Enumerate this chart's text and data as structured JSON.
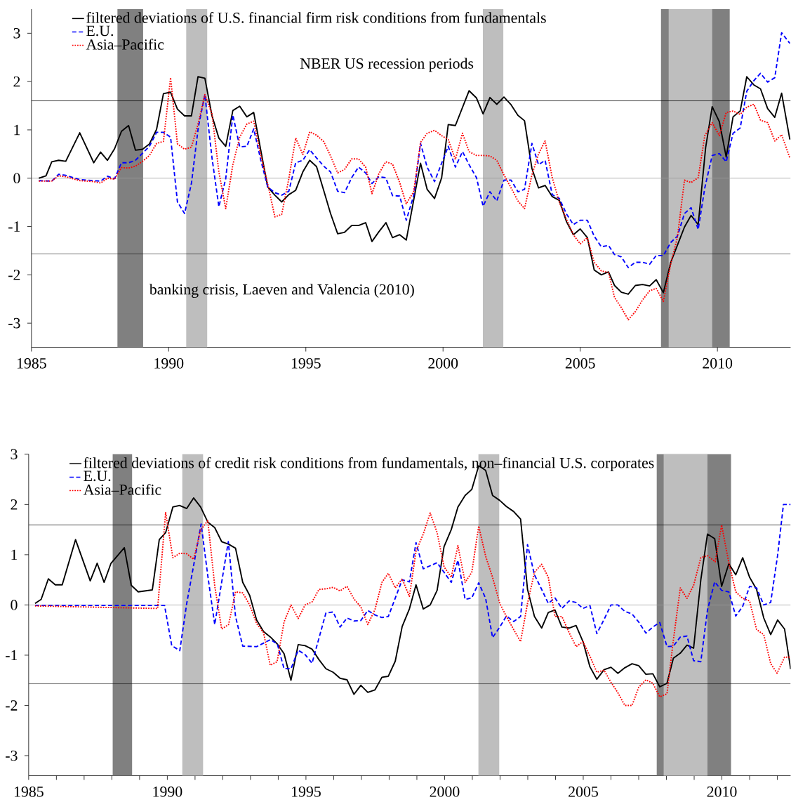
{
  "chart_data": [
    {
      "type": "line",
      "xlim": [
        1985,
        2012.67
      ],
      "ylim": [
        -3.5,
        3.5
      ],
      "xticks": [
        1985,
        1990,
        1995,
        2000,
        2005,
        2010
      ],
      "yticks": [
        -3,
        -2,
        -1,
        0,
        1,
        2,
        3
      ],
      "grid": false,
      "legend": "top left",
      "marker": "none",
      "annotations": [
        "NBER US recession periods",
        "banking crisis, Laeven and Valencia (2010)"
      ],
      "ref_lines": [
        {
          "axis": "y",
          "value": 1.6,
          "color": "#000000"
        },
        {
          "axis": "y",
          "value": 0,
          "color": "#9a9a9a"
        },
        {
          "axis": "y",
          "value": -1.57,
          "color": "#000000"
        }
      ],
      "bands": [
        {
          "axis": "x",
          "from": 1988.13,
          "to": 1989.07,
          "color": "#808080"
        },
        {
          "axis": "x",
          "from": 2007.94,
          "to": 2010.45,
          "color": "#808080"
        },
        {
          "axis": "x",
          "from": 1990.64,
          "to": 1991.41,
          "color": "#bebebe"
        },
        {
          "axis": "x",
          "from": 2001.45,
          "to": 2002.2,
          "color": "#bebebe"
        },
        {
          "axis": "x",
          "from": 2008.22,
          "to": 2009.81,
          "color": "#bebebe"
        }
      ],
      "series": [
        {
          "name": "filtered deviations of U.S. financial firm risk conditions from fundamentals",
          "color": "#000000",
          "line_style": "solid",
          "x": [
            1985.27,
            1985.53,
            1985.74,
            1985.99,
            1986.25,
            1986.76,
            1987.27,
            1987.52,
            1987.77,
            1988.03,
            1988.28,
            1988.54,
            1988.79,
            1989.05,
            1989.3,
            1989.56,
            1989.81,
            1990.07,
            1990.32,
            1990.58,
            1990.83,
            1991.07,
            1991.32,
            1991.58,
            1991.83,
            1992.08,
            1992.34,
            1992.59,
            1992.85,
            1993.1,
            1993.36,
            1993.61,
            1993.87,
            1994.12,
            1994.38,
            1994.63,
            1994.89,
            1995.14,
            1995.39,
            1995.65,
            1995.9,
            1996.16,
            1996.41,
            1996.67,
            1996.92,
            1997.18,
            1997.41,
            1997.66,
            1997.92,
            1998.16,
            1998.42,
            1998.66,
            1999.18,
            1999.42,
            1999.69,
            1999.95,
            2000.19,
            2000.45,
            2000.95,
            2001.22,
            2001.46,
            2001.71,
            2001.96,
            2002.22,
            2002.48,
            2002.73,
            2002.97,
            2003.24,
            2003.48,
            2003.72,
            2003.98,
            2004.24,
            2004.5,
            2004.75,
            2005.0,
            2005.26,
            2005.51,
            2005.77,
            2006.03,
            2006.25,
            2006.5,
            2006.75,
            2007.01,
            2007.27,
            2007.53,
            2007.77,
            2008.03,
            2008.3,
            2008.56,
            2008.8,
            2009.04,
            2009.3,
            2009.57,
            2009.81,
            2010.07,
            2010.32,
            2010.57,
            2010.83,
            2011.07,
            2011.33,
            2011.57,
            2011.83,
            2012.09,
            2012.34,
            2012.64
          ],
          "values": [
            0.0,
            0.05,
            0.34,
            0.37,
            0.35,
            0.94,
            0.32,
            0.54,
            0.37,
            0.61,
            0.97,
            1.09,
            0.58,
            0.6,
            0.71,
            1.01,
            1.75,
            1.78,
            1.43,
            1.29,
            1.29,
            2.1,
            2.07,
            1.29,
            0.83,
            0.66,
            1.4,
            1.49,
            1.27,
            1.36,
            0.57,
            -0.18,
            -0.35,
            -0.49,
            -0.34,
            -0.25,
            0.13,
            0.37,
            0.24,
            -0.25,
            -0.73,
            -1.15,
            -1.12,
            -0.98,
            -0.98,
            -0.92,
            -1.31,
            -1.11,
            -0.92,
            -1.23,
            -1.17,
            -1.28,
            0.31,
            -0.23,
            -0.42,
            0.01,
            1.11,
            1.09,
            1.81,
            1.66,
            1.33,
            1.67,
            1.53,
            1.68,
            1.52,
            1.3,
            1.19,
            0.2,
            -0.2,
            -0.15,
            -0.38,
            -0.46,
            -0.9,
            -1.17,
            -1.05,
            -1.23,
            -1.9,
            -2.0,
            -1.94,
            -2.22,
            -2.36,
            -2.4,
            -2.22,
            -2.2,
            -2.23,
            -2.1,
            -2.37,
            -1.74,
            -1.36,
            -1.01,
            -0.77,
            -0.96,
            0.63,
            1.48,
            1.17,
            0.44,
            1.27,
            1.39,
            2.1,
            1.93,
            1.85,
            1.44,
            1.26,
            1.76,
            0.8
          ]
        },
        {
          "name": "E.U.",
          "color": "#0000ff",
          "line_style": "dashed",
          "x": [
            1985.27,
            1985.74,
            1985.99,
            1986.25,
            1986.76,
            1987.27,
            1987.52,
            1987.77,
            1988.03,
            1988.28,
            1988.54,
            1988.79,
            1989.3,
            1989.56,
            1989.81,
            1990.07,
            1990.32,
            1990.58,
            1990.83,
            1991.08,
            1991.32,
            1991.58,
            1991.83,
            1992.08,
            1992.34,
            1992.59,
            1992.85,
            1993.1,
            1993.36,
            1993.61,
            1993.87,
            1994.12,
            1994.38,
            1994.63,
            1994.89,
            1995.14,
            1995.39,
            1995.65,
            1995.9,
            1996.16,
            1996.41,
            1996.67,
            1996.92,
            1997.18,
            1997.41,
            1997.66,
            1997.91,
            1998.16,
            1998.42,
            1998.66,
            1998.93,
            1999.18,
            1999.42,
            1999.69,
            1999.95,
            2000.19,
            2000.45,
            2000.71,
            2000.95,
            2001.22,
            2001.46,
            2001.71,
            2001.96,
            2002.22,
            2002.48,
            2002.73,
            2002.97,
            2003.24,
            2003.48,
            2003.72,
            2003.98,
            2004.24,
            2004.5,
            2004.75,
            2005.0,
            2005.26,
            2005.51,
            2005.77,
            2006.03,
            2006.25,
            2006.5,
            2006.75,
            2007.01,
            2007.27,
            2007.53,
            2007.77,
            2008.03,
            2008.3,
            2008.54,
            2008.8,
            2009.04,
            2009.3,
            2009.54,
            2009.81,
            2010.07,
            2010.32,
            2010.57,
            2010.83,
            2011.07,
            2011.33,
            2011.57,
            2011.83,
            2012.09,
            2012.34,
            2012.64
          ],
          "values": [
            -0.05,
            -0.06,
            0.08,
            0.06,
            -0.03,
            -0.05,
            -0.06,
            0.04,
            -0.01,
            0.32,
            0.32,
            0.37,
            0.66,
            0.95,
            0.95,
            0.85,
            -0.49,
            -0.73,
            -0.11,
            1.05,
            1.73,
            0.42,
            -0.59,
            -0.01,
            1.31,
            0.65,
            0.66,
            1.02,
            0.37,
            -0.18,
            -0.3,
            -0.35,
            -0.27,
            0.32,
            0.37,
            0.59,
            0.42,
            0.25,
            0.13,
            -0.27,
            -0.3,
            0.01,
            0.23,
            0.11,
            -0.11,
            0.03,
            0.01,
            -0.36,
            -0.37,
            -0.87,
            -0.36,
            0.72,
            0.23,
            -0.07,
            0.31,
            0.66,
            0.23,
            0.55,
            0.28,
            0.01,
            -0.58,
            -0.28,
            -0.47,
            -0.04,
            -0.04,
            -0.28,
            -0.23,
            0.72,
            0.28,
            0.37,
            -0.34,
            -0.42,
            -0.74,
            -0.96,
            -0.87,
            -0.87,
            -1.2,
            -1.42,
            -1.39,
            -1.58,
            -1.63,
            -1.85,
            -1.74,
            -1.74,
            -1.78,
            -1.6,
            -1.6,
            -1.33,
            -1.2,
            -0.73,
            -0.61,
            -1.06,
            -0.2,
            0.47,
            0.51,
            0.34,
            0.93,
            1.04,
            1.8,
            2.02,
            2.17,
            1.99,
            2.08,
            3.01,
            2.79
          ]
        },
        {
          "name": "Asia–Pacific",
          "color": "#ff0000",
          "line_style": "dotted",
          "x": [
            1985.27,
            1985.74,
            1985.99,
            1986.25,
            1986.76,
            1987.27,
            1987.52,
            1987.77,
            1988.03,
            1988.28,
            1988.54,
            1988.79,
            1989.05,
            1989.3,
            1989.56,
            1989.81,
            1990.07,
            1990.32,
            1990.58,
            1990.83,
            1991.08,
            1991.32,
            1991.58,
            1991.83,
            1992.08,
            1992.34,
            1992.59,
            1992.85,
            1993.1,
            1993.36,
            1993.61,
            1993.87,
            1994.12,
            1994.38,
            1994.63,
            1994.89,
            1995.14,
            1995.39,
            1995.65,
            1995.9,
            1996.16,
            1996.41,
            1996.67,
            1996.92,
            1997.18,
            1997.41,
            1997.66,
            1997.91,
            1998.16,
            1998.42,
            1998.66,
            1998.93,
            1999.18,
            1999.42,
            1999.69,
            1999.95,
            2000.19,
            2000.45,
            2000.71,
            2000.95,
            2001.22,
            2001.46,
            2001.71,
            2001.96,
            2002.22,
            2002.48,
            2002.73,
            2002.97,
            2003.24,
            2003.48,
            2003.72,
            2003.98,
            2004.24,
            2004.5,
            2004.75,
            2005.0,
            2005.26,
            2005.51,
            2005.77,
            2006.03,
            2006.25,
            2006.5,
            2006.75,
            2007.01,
            2007.27,
            2007.53,
            2007.77,
            2008.03,
            2008.3,
            2008.54,
            2008.8,
            2009.04,
            2009.3,
            2009.54,
            2009.81,
            2010.07,
            2010.32,
            2010.57,
            2010.83,
            2011.07,
            2011.33,
            2011.57,
            2011.83,
            2012.09,
            2012.34,
            2012.64
          ],
          "values": [
            -0.06,
            -0.06,
            0.05,
            0.03,
            -0.05,
            -0.07,
            -0.1,
            0.0,
            -0.02,
            0.22,
            0.21,
            0.25,
            0.35,
            0.47,
            0.72,
            0.76,
            2.08,
            0.71,
            0.6,
            0.64,
            1.14,
            1.73,
            1.33,
            0.13,
            -0.63,
            0.28,
            0.85,
            1.12,
            1.18,
            0.47,
            -0.11,
            -0.8,
            -0.75,
            -0.01,
            0.83,
            0.49,
            0.96,
            0.89,
            0.76,
            0.46,
            0.11,
            0.18,
            0.4,
            0.4,
            0.23,
            -0.32,
            0.09,
            0.34,
            0.29,
            -0.09,
            -0.53,
            -0.28,
            0.74,
            0.93,
            0.99,
            0.88,
            0.8,
            0.39,
            0.93,
            0.55,
            0.47,
            0.47,
            0.46,
            0.37,
            0.07,
            -0.2,
            -0.47,
            -0.63,
            0.07,
            0.5,
            0.77,
            0.01,
            -0.5,
            -0.85,
            -1.17,
            -1.36,
            -1.23,
            -1.74,
            -1.92,
            -1.95,
            -2.47,
            -2.68,
            -2.93,
            -2.76,
            -2.52,
            -2.33,
            -2.28,
            -2.55,
            -1.77,
            -1.23,
            -0.04,
            -0.09,
            0.01,
            0.88,
            1.15,
            0.88,
            1.36,
            1.39,
            1.32,
            1.47,
            1.53,
            1.2,
            1.15,
            0.77,
            0.9,
            0.42
          ]
        }
      ]
    },
    {
      "type": "line",
      "xlim": [
        1985,
        2012.48
      ],
      "ylim": [
        -3.4,
        3.0
      ],
      "xticks": [
        1985,
        {
          "value": 1986,
          "label": null
        },
        {
          "value": 1987,
          "label": null
        },
        {
          "value": 1988,
          "label": null
        },
        {
          "value": 1989,
          "label": null
        },
        1990,
        {
          "value": 1991,
          "label": null
        },
        {
          "value": 1992,
          "label": null
        },
        {
          "value": 1993,
          "label": null
        },
        {
          "value": 1994,
          "label": null
        },
        1995,
        {
          "value": 1996,
          "label": null
        },
        {
          "value": 1997,
          "label": null
        },
        {
          "value": 1998,
          "label": null
        },
        {
          "value": 1999,
          "label": null
        },
        2000,
        {
          "value": 2001,
          "label": null
        },
        {
          "value": 2002,
          "label": null
        },
        {
          "value": 2003,
          "label": null
        },
        {
          "value": 2004,
          "label": null
        },
        2005,
        {
          "value": 2006,
          "label": null
        },
        {
          "value": 2007,
          "label": null
        },
        {
          "value": 2008,
          "label": null
        },
        {
          "value": 2009,
          "label": null
        },
        2010,
        {
          "value": 2011,
          "label": null
        },
        {
          "value": 2012,
          "label": null
        }
      ],
      "yticks": [
        -3,
        -2,
        -1,
        0,
        1,
        2,
        3
      ],
      "grid": false,
      "legend": "top left",
      "marker": "none",
      "ref_lines": [
        {
          "axis": "y",
          "value": 1.59,
          "color": "#000000"
        },
        {
          "axis": "y",
          "value": 0,
          "color": "#9a9a9a"
        },
        {
          "axis": "y",
          "value": -1.57,
          "color": "#000000"
        }
      ],
      "bands": [
        {
          "axis": "x",
          "from": 1988.03,
          "to": 1988.73,
          "color": "#808080"
        },
        {
          "axis": "x",
          "from": 2007.65,
          "to": 2010.33,
          "color": "#808080"
        },
        {
          "axis": "x",
          "from": 1990.54,
          "to": 1991.29,
          "color": "#bebebe"
        },
        {
          "axis": "x",
          "from": 2001.22,
          "to": 2001.97,
          "color": "#bebebe"
        },
        {
          "axis": "x",
          "from": 2007.9,
          "to": 2009.48,
          "color": "#bebebe"
        }
      ],
      "series": [
        {
          "name": "filtered deviations of credit risk conditions from fundamentals, non–financial U.S. corporates",
          "color": "#000000",
          "line_style": "solid",
          "x": [
            1985.23,
            1985.45,
            1985.71,
            1985.96,
            1986.21,
            1986.69,
            1987.22,
            1987.47,
            1987.72,
            1987.97,
            1988.45,
            1988.7,
            1988.95,
            1989.46,
            1989.71,
            1989.94,
            1990.2,
            1990.45,
            1990.7,
            1990.95,
            1991.2,
            1991.46,
            1991.71,
            1991.96,
            1992.21,
            1992.46,
            1992.72,
            1992.97,
            1993.22,
            1993.47,
            1993.72,
            1993.97,
            1994.21,
            1994.46,
            1994.72,
            1994.97,
            1995.22,
            1995.47,
            1995.72,
            1995.98,
            1996.23,
            1996.48,
            1996.73,
            1996.98,
            1997.23,
            1997.49,
            1997.74,
            1997.97,
            1998.22,
            1998.47,
            1998.73,
            1998.97,
            1999.23,
            1999.48,
            1999.73,
            1999.98,
            2000.24,
            2000.48,
            2000.74,
            2000.98,
            2001.23,
            2001.48,
            2001.73,
            2001.99,
            2002.23,
            2002.49,
            2002.74,
            2002.99,
            2003.24,
            2003.5,
            2003.74,
            2003.98,
            2004.23,
            2004.49,
            2004.74,
            2004.99,
            2005.24,
            2005.49,
            2005.75,
            2006.0,
            2006.25,
            2006.5,
            2006.76,
            2007.0,
            2007.26,
            2007.51,
            2007.76,
            2008.02,
            2008.25,
            2008.5,
            2008.74,
            2008.98,
            2009.24,
            2009.48,
            2009.74,
            2009.99,
            2010.25,
            2010.5,
            2010.75,
            2011.0,
            2011.25,
            2011.51,
            2011.76,
            2012.01,
            2012.26,
            2012.48
          ],
          "values": [
            0.03,
            0.11,
            0.52,
            0.4,
            0.4,
            1.3,
            0.48,
            0.83,
            0.45,
            0.83,
            1.14,
            0.39,
            0.26,
            0.3,
            1.3,
            1.44,
            1.95,
            1.98,
            1.92,
            2.13,
            1.95,
            1.65,
            1.54,
            1.26,
            1.21,
            1.13,
            0.45,
            0.19,
            -0.3,
            -0.53,
            -0.64,
            -0.78,
            -0.97,
            -1.5,
            -0.79,
            -0.81,
            -0.88,
            -1.09,
            -1.27,
            -1.34,
            -1.46,
            -1.49,
            -1.78,
            -1.6,
            -1.74,
            -1.69,
            -1.44,
            -1.42,
            -1.12,
            -0.43,
            -0.08,
            0.4,
            -0.08,
            0.0,
            0.29,
            1.16,
            1.5,
            1.95,
            2.18,
            2.3,
            2.77,
            2.68,
            2.18,
            2.08,
            1.96,
            1.86,
            1.71,
            0.31,
            -0.23,
            -0.46,
            -0.15,
            -0.1,
            -0.44,
            -0.46,
            -0.41,
            -0.73,
            -1.23,
            -1.48,
            -1.29,
            -1.24,
            -1.36,
            -1.25,
            -1.17,
            -1.21,
            -1.38,
            -1.37,
            -1.63,
            -1.56,
            -1.06,
            -0.96,
            -0.8,
            -0.86,
            0.5,
            1.41,
            1.32,
            0.37,
            0.82,
            0.6,
            0.94,
            0.55,
            0.31,
            -0.26,
            -0.59,
            -0.3,
            -0.48,
            -1.28
          ]
        },
        {
          "name": "E.U.",
          "color": "#0000ff",
          "line_style": "dashed",
          "x": [
            1985.23,
            1989.9,
            1990.16,
            1990.45,
            1990.7,
            1991.22,
            1991.46,
            1991.71,
            1992.2,
            1992.46,
            1992.72,
            1993.22,
            1993.72,
            1993.97,
            1994.21,
            1994.46,
            1994.72,
            1994.97,
            1995.22,
            1995.72,
            1995.98,
            1996.23,
            1996.48,
            1996.73,
            1996.98,
            1997.23,
            1997.49,
            1997.74,
            1997.97,
            1998.47,
            1998.73,
            1998.97,
            1999.23,
            1999.73,
            1999.98,
            2000.24,
            2000.48,
            2000.74,
            2000.98,
            2001.23,
            2001.48,
            2001.73,
            2001.99,
            2002.23,
            2002.49,
            2002.74,
            2002.99,
            2003.24,
            2003.5,
            2003.74,
            2003.98,
            2004.23,
            2004.49,
            2004.74,
            2004.99,
            2005.24,
            2005.49,
            2005.75,
            2006.0,
            2006.25,
            2006.5,
            2006.76,
            2007.0,
            2007.26,
            2007.51,
            2007.76,
            2008.02,
            2008.25,
            2008.5,
            2008.74,
            2008.98,
            2009.24,
            2009.48,
            2009.74,
            2009.99,
            2010.25,
            2010.5,
            2010.75,
            2011.0,
            2011.25,
            2011.51,
            2011.76,
            2012.01,
            2012.22,
            2012.48
          ],
          "values": [
            -0.01,
            -0.01,
            -0.81,
            -0.91,
            0.03,
            1.61,
            0.58,
            -0.39,
            1.26,
            -0.23,
            -0.82,
            -0.83,
            -0.69,
            -0.78,
            -1.27,
            -1.27,
            -0.9,
            -0.99,
            -1.16,
            -0.16,
            -0.14,
            -0.44,
            -0.26,
            -0.32,
            -0.31,
            -0.11,
            -0.2,
            -0.25,
            -0.23,
            0.5,
            0.46,
            1.24,
            0.72,
            0.84,
            0.65,
            0.45,
            0.89,
            0.11,
            0.14,
            0.44,
            0.13,
            -0.65,
            -0.44,
            -0.22,
            -0.33,
            -0.23,
            1.2,
            0.6,
            0.31,
            0.03,
            0.14,
            -0.07,
            0.08,
            0.05,
            -0.07,
            -0.01,
            -0.57,
            -0.29,
            0.0,
            0.0,
            -0.13,
            -0.18,
            -0.34,
            -0.56,
            -0.44,
            -0.35,
            -0.83,
            -0.82,
            -0.64,
            -0.62,
            -1.11,
            -1.13,
            -0.1,
            0.46,
            0.29,
            0.26,
            -0.22,
            -0.03,
            0.37,
            0.34,
            0.0,
            0.05,
            0.99,
            2.0,
            2.0
          ]
        },
        {
          "name": "Asia–Pacific",
          "color": "#ff0000",
          "line_style": "dotted",
          "x": [
            1985.23,
            1989.65,
            1989.94,
            1990.2,
            1990.45,
            1990.7,
            1990.95,
            1991.2,
            1991.46,
            1991.71,
            1991.96,
            1992.21,
            1992.46,
            1992.72,
            1992.97,
            1993.22,
            1993.47,
            1993.71,
            1993.96,
            1994.21,
            1994.46,
            1994.72,
            1994.97,
            1995.22,
            1995.47,
            1995.72,
            1995.98,
            1996.23,
            1996.48,
            1996.73,
            1996.98,
            1997.23,
            1997.49,
            1997.74,
            1997.97,
            1998.22,
            1998.47,
            1998.73,
            1998.97,
            1999.23,
            1999.48,
            1999.73,
            1999.98,
            2000.24,
            2000.48,
            2000.74,
            2000.98,
            2001.23,
            2001.48,
            2001.73,
            2001.99,
            2002.23,
            2002.49,
            2002.74,
            2002.99,
            2003.24,
            2003.5,
            2003.74,
            2003.98,
            2004.23,
            2004.49,
            2004.74,
            2004.99,
            2005.24,
            2005.49,
            2005.75,
            2006.0,
            2006.25,
            2006.5,
            2006.76,
            2007.0,
            2007.26,
            2007.51,
            2007.76,
            2008.02,
            2008.25,
            2008.5,
            2008.74,
            2008.98,
            2009.24,
            2009.48,
            2009.76,
            2009.99,
            2010.25,
            2010.5,
            2010.75,
            2011.0,
            2011.25,
            2011.51,
            2011.76,
            2011.99,
            2012.26,
            2012.48
          ],
          "values": [
            -0.02,
            -0.07,
            1.84,
            0.94,
            1.03,
            1.02,
            0.91,
            1.49,
            1.68,
            0.38,
            -0.48,
            -0.39,
            0.26,
            0.24,
            0.0,
            -0.37,
            -0.55,
            -1.2,
            -1.13,
            -0.34,
            0.0,
            -0.27,
            0.0,
            0.06,
            0.31,
            0.32,
            0.35,
            0.28,
            0.37,
            0.12,
            -0.04,
            -0.39,
            -0.09,
            0.45,
            0.63,
            0.34,
            0.52,
            0.17,
            1.07,
            1.41,
            1.83,
            1.44,
            0.76,
            0.55,
            1.18,
            0.45,
            0.65,
            1.57,
            0.97,
            0.55,
            0.03,
            -0.23,
            -0.49,
            -0.73,
            0.03,
            0.65,
            0.81,
            0.55,
            -0.23,
            -0.23,
            -0.55,
            -0.83,
            -0.73,
            -1.02,
            -1.34,
            -1.3,
            -1.54,
            -1.75,
            -2.0,
            -2.0,
            -1.64,
            -1.49,
            -1.56,
            -1.83,
            -1.77,
            -0.7,
            0.34,
            0.13,
            0.39,
            0.94,
            0.98,
            0.86,
            1.59,
            0.84,
            0.26,
            0.13,
            0.08,
            -0.49,
            -0.59,
            -1.17,
            -1.36,
            -1.04,
            -1.04
          ]
        }
      ]
    }
  ]
}
